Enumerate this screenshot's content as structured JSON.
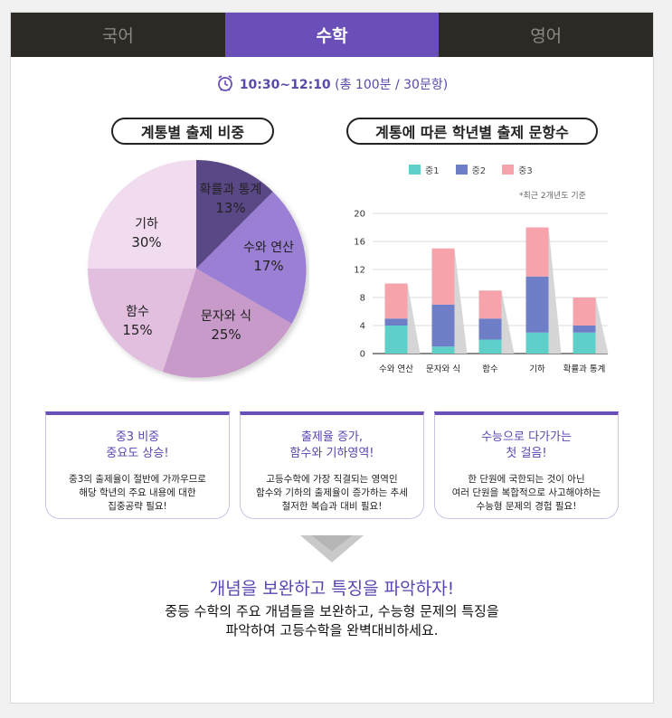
{
  "tabs": [
    {
      "label": "국어",
      "active": false
    },
    {
      "label": "수학",
      "active": true
    },
    {
      "label": "영어",
      "active": false
    }
  ],
  "exam_time": {
    "time": "10:30~12:10",
    "detail": "(총 100분 / 30문항)"
  },
  "pie_section": {
    "title": "계통별 출제 비중",
    "slices": [
      {
        "label": "확률과 통계",
        "value": "13%",
        "color": "#5a4785"
      },
      {
        "label": "수와 연산",
        "value": "17%",
        "color": "#9b7fd4"
      },
      {
        "label": "문자와 식",
        "value": "25%",
        "color": "#c79ac9"
      },
      {
        "label": "함수",
        "value": "15%",
        "color": "#e2bfdf"
      },
      {
        "label": "기하",
        "value": "30%",
        "color": "#f1dcef"
      }
    ]
  },
  "bar_section": {
    "title": "계통에 따른 학년별 출제 문항수",
    "note": "*최근 2개년도 기준"
  },
  "chart_data": {
    "type": "bar",
    "stacked": true,
    "categories": [
      "수와 연산",
      "문자와 식",
      "함수",
      "기하",
      "확률과 통계"
    ],
    "series": [
      {
        "name": "중1",
        "values": [
          4,
          1,
          2,
          3,
          3
        ],
        "color": "#5ecfc9"
      },
      {
        "name": "중2",
        "values": [
          1,
          6,
          3,
          8,
          1
        ],
        "color": "#6e7fc8"
      },
      {
        "name": "중3",
        "values": [
          5,
          8,
          4,
          7,
          4
        ],
        "color": "#f7a3ab"
      }
    ],
    "yticks": [
      "0",
      "4",
      "8",
      "12",
      "16",
      "20"
    ],
    "ylim": [
      0,
      20
    ],
    "grid": true,
    "legend": "top"
  },
  "cards": [
    {
      "title1": "중3 비중",
      "title2": "중요도 상승!",
      "body1": "중3의 출제율이 절반에 가까우므로",
      "body2": "해당 학년의 주요 내용에 대한",
      "body3": "집중공략 필요!"
    },
    {
      "title1": "출제율 증가,",
      "title2": "함수와 기하영역!",
      "body1": "고등수학에 가장 직결되는 영역인",
      "body2": "함수와 기하의 출제율이 증가하는 추세",
      "body3": "철저한 복습과 대비 필요!"
    },
    {
      "title1": "수능으로 다가가는",
      "title2": "첫 걸음!",
      "body1": "한 단원에 국한되는 것이 아닌",
      "body2": "여러 단원을 복합적으로 사고해야하는",
      "body3": "수능형 문제의 경험 필요!"
    }
  ],
  "headline": "개념을 보완하고 특징을 파악하자!",
  "description": {
    "line1": "중등 수학의 주요 개념들을 보완하고, 수능형 문제의 특징을",
    "line2": "파악하여 고등수학을 완벽대비하세요."
  },
  "icons": {
    "clock": "alarm-clock-icon",
    "arrow": "chevron-down-icon"
  },
  "colors": {
    "accent": "#6a4fb8",
    "tab_bg": "#2d2a26"
  }
}
